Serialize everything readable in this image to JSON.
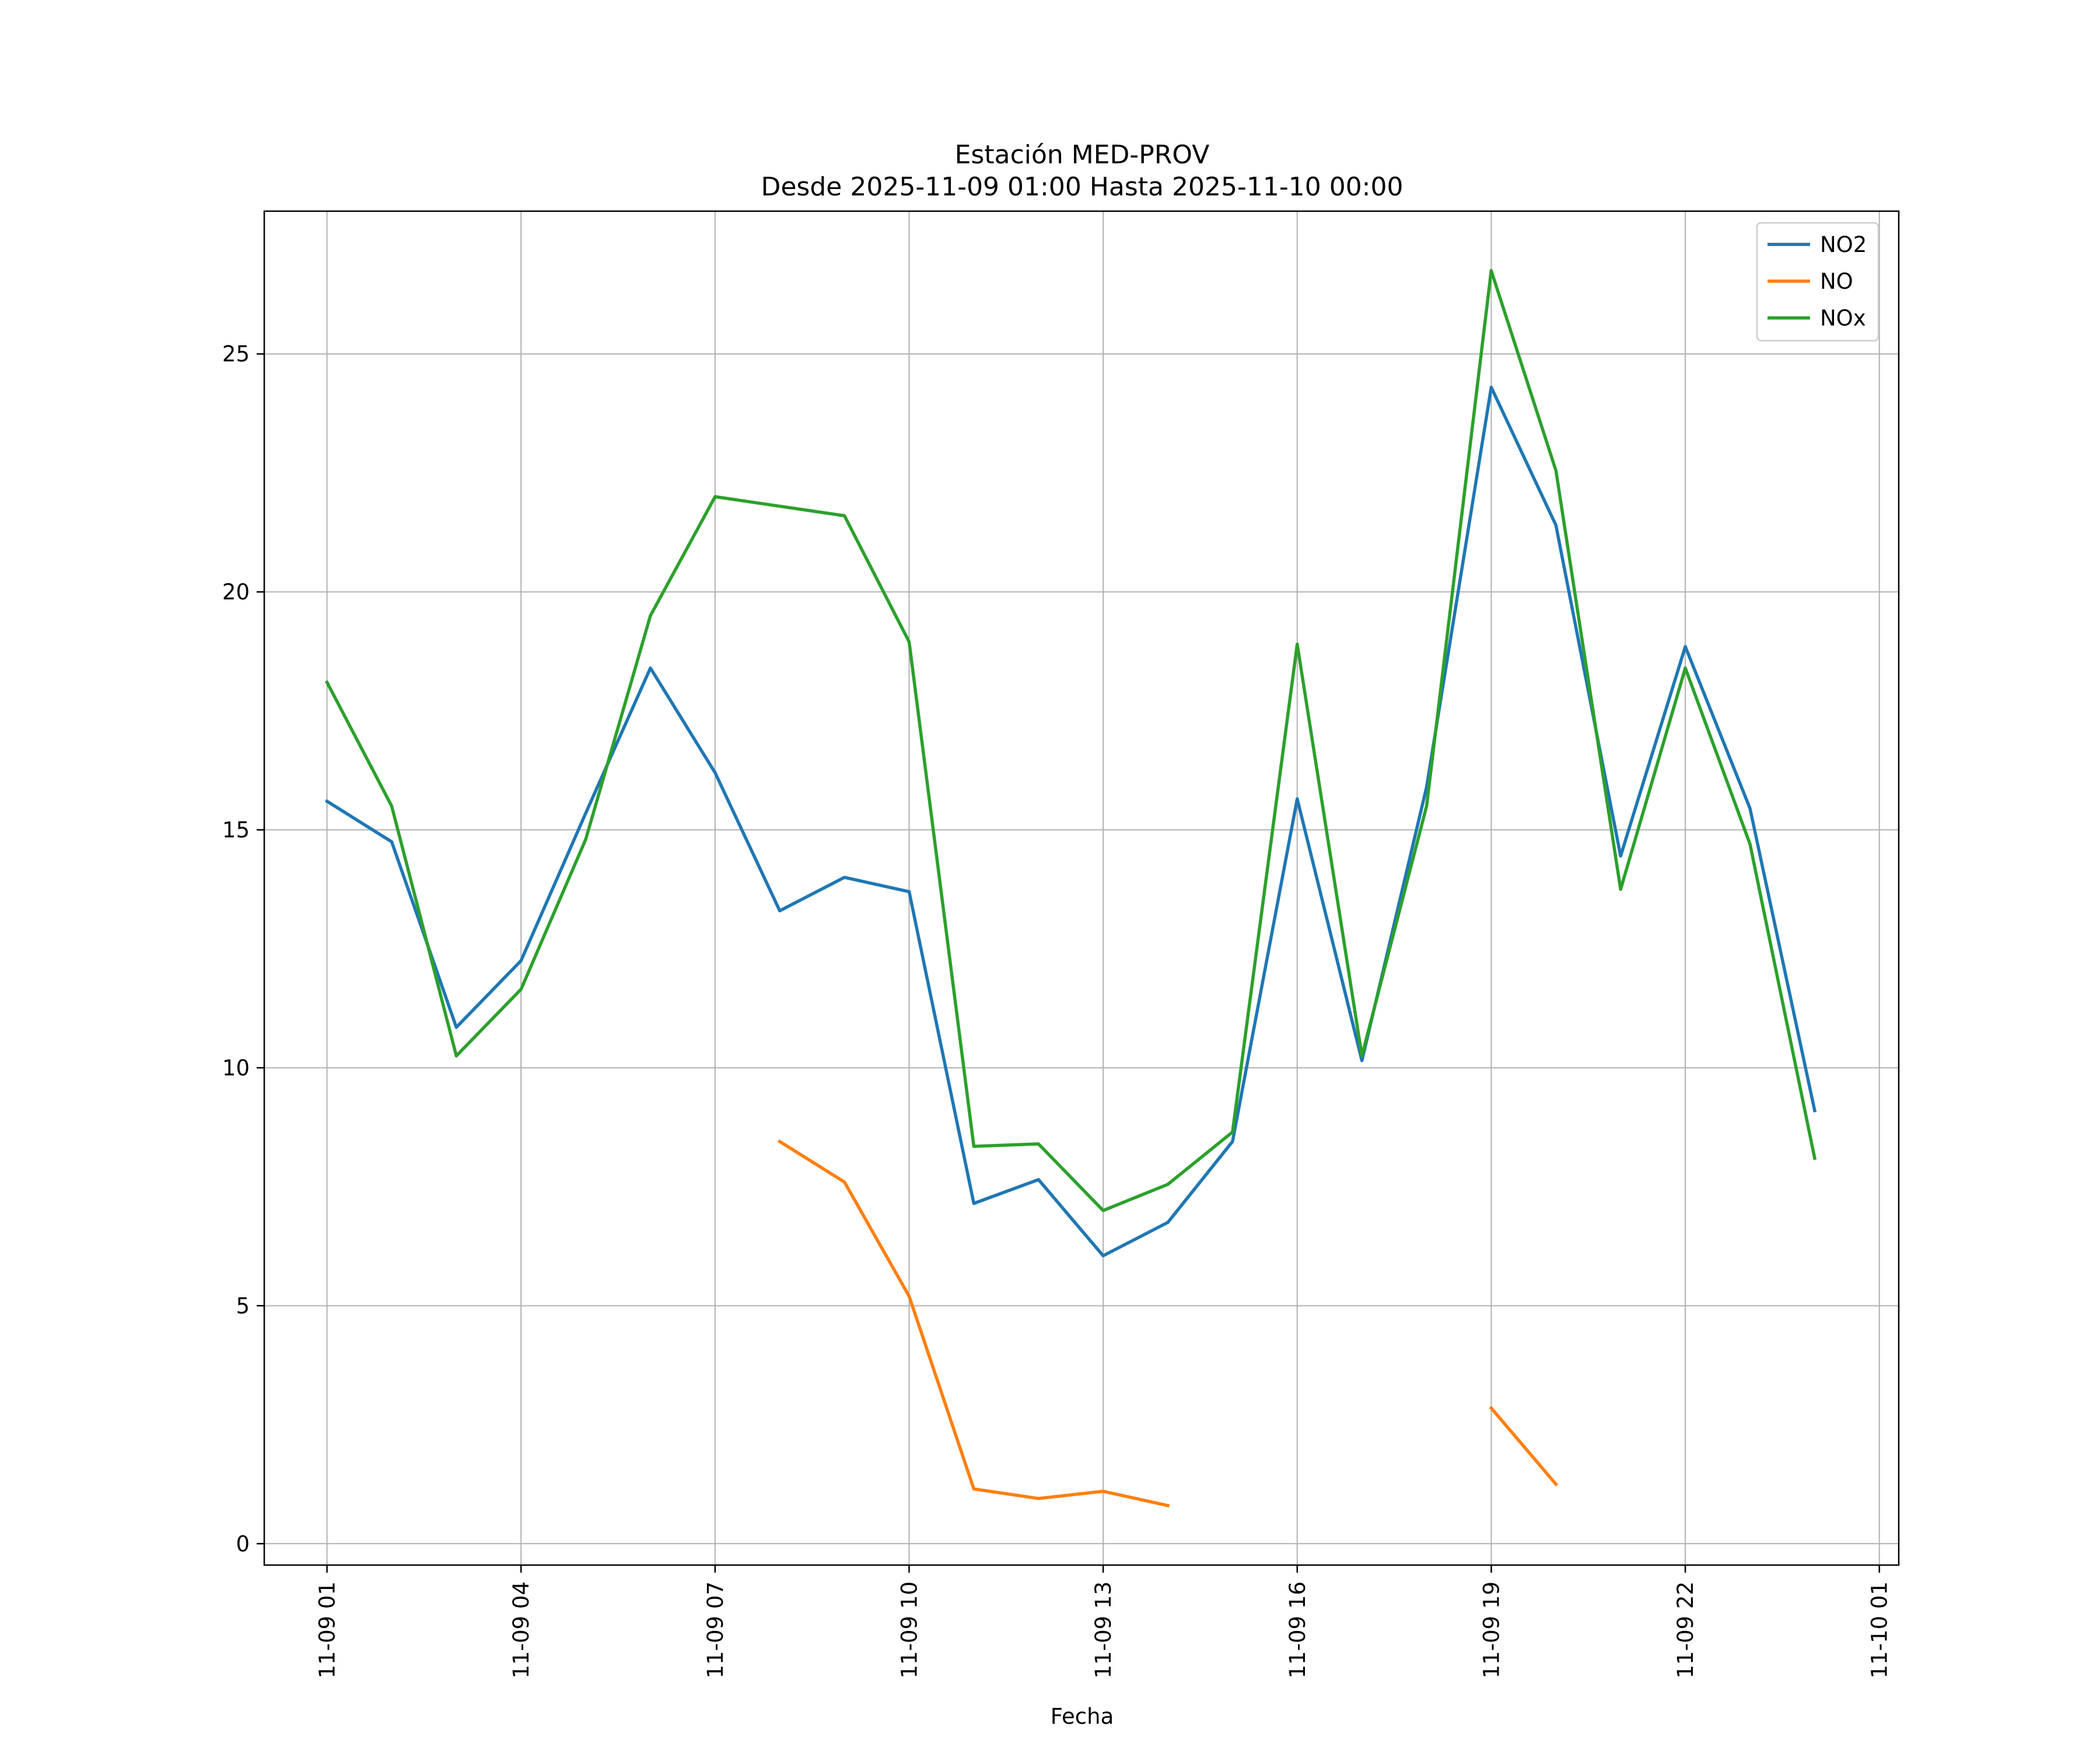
{
  "chart_data": {
    "type": "line",
    "title": "Estación MED-PROV",
    "subtitle": "Desde 2025-11-09 01:00 Hasta 2025-11-10 00:00",
    "xlabel": "Fecha",
    "ylabel": "",
    "x_hours": [
      1,
      2,
      3,
      4,
      5,
      6,
      7,
      8,
      9,
      10,
      11,
      12,
      13,
      14,
      15,
      16,
      17,
      18,
      19,
      20,
      21,
      22,
      23,
      24
    ],
    "xlim": [
      0.03,
      25.3
    ],
    "ylim": [
      -0.45,
      28
    ],
    "x_ticks": [
      {
        "hour": 1,
        "label": "11-09 01"
      },
      {
        "hour": 4,
        "label": "11-09 04"
      },
      {
        "hour": 7,
        "label": "11-09 07"
      },
      {
        "hour": 10,
        "label": "11-09 10"
      },
      {
        "hour": 13,
        "label": "11-09 13"
      },
      {
        "hour": 16,
        "label": "11-09 16"
      },
      {
        "hour": 19,
        "label": "11-09 19"
      },
      {
        "hour": 22,
        "label": "11-09 22"
      },
      {
        "hour": 25,
        "label": "11-10 01"
      }
    ],
    "y_ticks": [
      {
        "value": 0,
        "label": "0"
      },
      {
        "value": 5,
        "label": "5"
      },
      {
        "value": 10,
        "label": "10"
      },
      {
        "value": 15,
        "label": "15"
      },
      {
        "value": 20,
        "label": "20"
      },
      {
        "value": 25,
        "label": "25"
      }
    ],
    "grid": true,
    "legend_position": "top-right",
    "series": [
      {
        "name": "NO2",
        "color": "#1f77b4",
        "values": [
          15.6,
          14.75,
          10.85,
          12.25,
          15.35,
          18.4,
          16.2,
          13.3,
          14.0,
          13.7,
          7.15,
          7.65,
          6.05,
          6.75,
          8.45,
          15.65,
          10.15,
          15.9,
          24.3,
          21.4,
          14.45,
          18.85,
          15.45,
          9.1
        ]
      },
      {
        "name": "NO",
        "color": "#ff7f0e",
        "values": [
          null,
          null,
          null,
          null,
          null,
          null,
          null,
          8.45,
          7.6,
          5.2,
          1.15,
          0.95,
          1.1,
          0.8,
          null,
          null,
          null,
          null,
          2.85,
          1.25,
          null,
          null,
          null,
          null
        ]
      },
      {
        "name": "NOx",
        "color": "#2ca02c",
        "values": [
          18.1,
          15.5,
          10.25,
          11.65,
          14.8,
          19.5,
          22.0,
          21.8,
          21.6,
          18.95,
          8.35,
          8.4,
          7.0,
          7.55,
          8.65,
          18.9,
          10.25,
          15.5,
          26.75,
          22.55,
          13.75,
          18.4,
          14.7,
          8.1
        ]
      }
    ]
  }
}
